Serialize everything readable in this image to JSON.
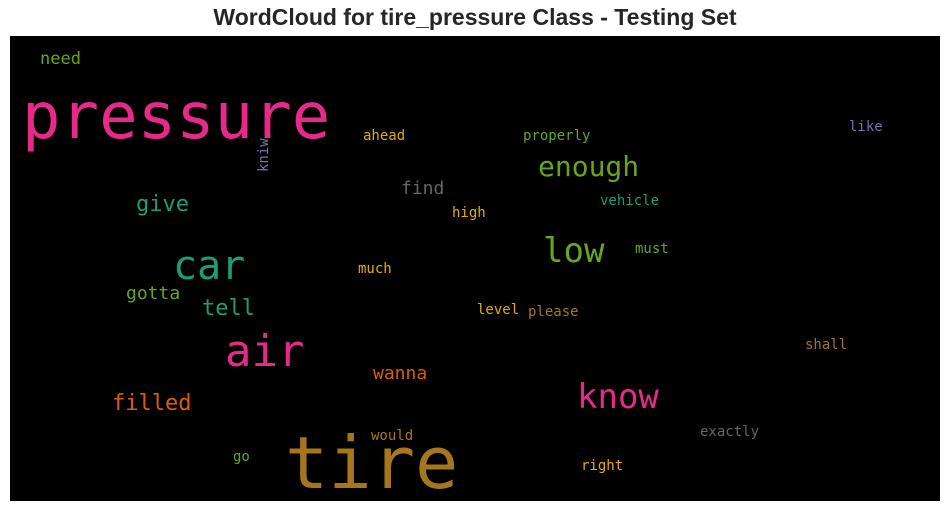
{
  "chart_data": {
    "type": "wordcloud",
    "title": "WordCloud for tire_pressure Class - Testing Set",
    "background": "#000000",
    "words": [
      {
        "text": "pressure",
        "weight": 1.0,
        "color": "#e7298a"
      },
      {
        "text": "tire",
        "weight": 1.0,
        "color": "#a6761d"
      },
      {
        "text": "air",
        "weight": 0.55,
        "color": "#e7298a"
      },
      {
        "text": "car",
        "weight": 0.55,
        "color": "#1b9e77"
      },
      {
        "text": "know",
        "weight": 0.5,
        "color": "#e7298a"
      },
      {
        "text": "low",
        "weight": 0.5,
        "color": "#66a61e"
      },
      {
        "text": "enough",
        "weight": 0.45,
        "color": "#66a61e"
      },
      {
        "text": "filled",
        "weight": 0.38,
        "color": "#d95f02"
      },
      {
        "text": "give",
        "weight": 0.36,
        "color": "#1b9e77"
      },
      {
        "text": "tell",
        "weight": 0.36,
        "color": "#1b9e77"
      },
      {
        "text": "gotta",
        "weight": 0.3,
        "color": "#66a61e"
      },
      {
        "text": "wanna",
        "weight": 0.3,
        "color": "#d95f02"
      },
      {
        "text": "find",
        "weight": 0.3,
        "color": "#666666"
      },
      {
        "text": "need",
        "weight": 0.28,
        "color": "#66a61e"
      },
      {
        "text": "ahead",
        "weight": 0.2,
        "color": "#e6ab02"
      },
      {
        "text": "properly",
        "weight": 0.2,
        "color": "#66a61e"
      },
      {
        "text": "like",
        "weight": 0.2,
        "color": "#7570b3"
      },
      {
        "text": "kniw",
        "weight": 0.2,
        "color": "#7570b3"
      },
      {
        "text": "high",
        "weight": 0.2,
        "color": "#e6ab02"
      },
      {
        "text": "vehicle",
        "weight": 0.2,
        "color": "#1b9e77"
      },
      {
        "text": "must",
        "weight": 0.2,
        "color": "#66a61e"
      },
      {
        "text": "much",
        "weight": 0.2,
        "color": "#e6ab02"
      },
      {
        "text": "level",
        "weight": 0.2,
        "color": "#e6ab02"
      },
      {
        "text": "please",
        "weight": 0.2,
        "color": "#a6761d"
      },
      {
        "text": "shall",
        "weight": 0.2,
        "color": "#a6761d"
      },
      {
        "text": "would",
        "weight": 0.2,
        "color": "#a6761d"
      },
      {
        "text": "exactly",
        "weight": 0.2,
        "color": "#666666"
      },
      {
        "text": "go",
        "weight": 0.2,
        "color": "#66a61e"
      },
      {
        "text": "right",
        "weight": 0.2,
        "color": "#e6ab02"
      }
    ]
  }
}
